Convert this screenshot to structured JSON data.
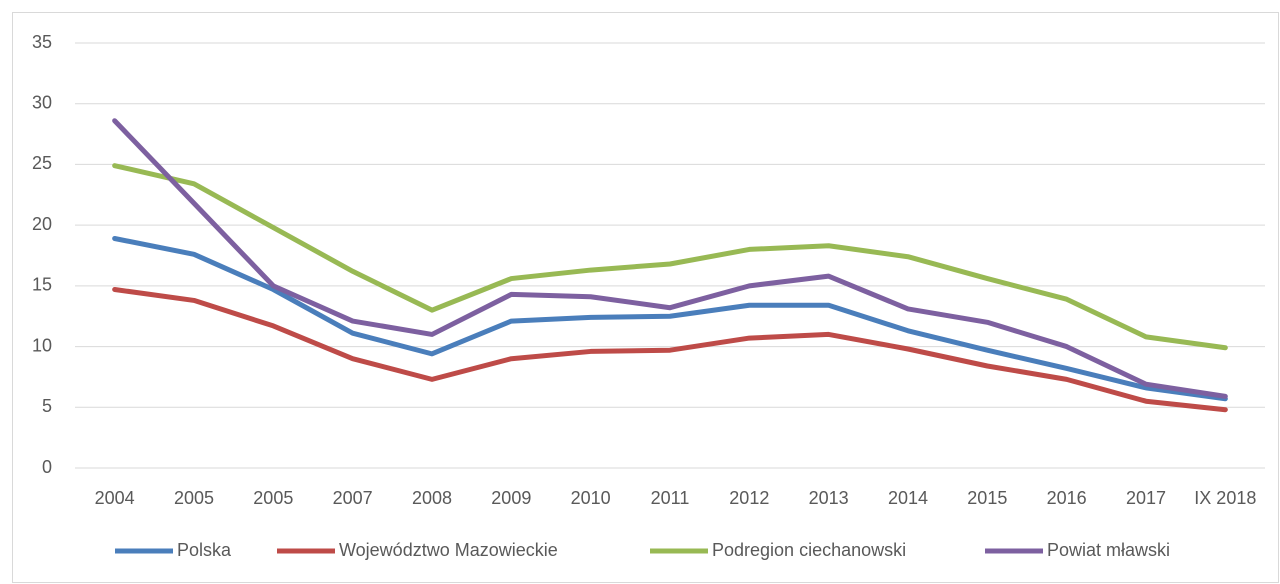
{
  "chart_data": {
    "type": "line",
    "categories": [
      "2004",
      "2005",
      "2005",
      "2007",
      "2008",
      "2009",
      "2010",
      "2011",
      "2012",
      "2013",
      "2014",
      "2015",
      "2016",
      "2017",
      "IX 2018"
    ],
    "series": [
      {
        "name": "Polska",
        "color": "#4a7ebb",
        "values": [
          18.9,
          17.6,
          14.7,
          11.1,
          9.4,
          12.1,
          12.4,
          12.5,
          13.4,
          13.4,
          11.3,
          9.7,
          8.2,
          6.6,
          5.7
        ]
      },
      {
        "name": "Województwo Mazowieckie",
        "color": "#be4b48",
        "values": [
          14.7,
          13.8,
          11.7,
          9.0,
          7.3,
          9.0,
          9.6,
          9.7,
          10.7,
          11.0,
          9.8,
          8.4,
          7.3,
          5.5,
          4.8
        ]
      },
      {
        "name": "Podregion ciechanowski",
        "color": "#98b954",
        "values": [
          24.9,
          23.4,
          19.8,
          16.2,
          13.0,
          15.6,
          16.3,
          16.8,
          18.0,
          18.3,
          17.4,
          15.6,
          13.9,
          10.8,
          9.9
        ]
      },
      {
        "name": "Powiat mławski",
        "color": "#7d60a0",
        "values": [
          28.6,
          21.8,
          15.0,
          12.1,
          11.0,
          14.3,
          14.1,
          13.2,
          15.0,
          15.8,
          13.1,
          12.0,
          10.0,
          6.9,
          5.9
        ]
      }
    ],
    "ylim": [
      0,
      35
    ],
    "yticks": [
      0,
      5,
      10,
      15,
      20,
      25,
      30,
      35
    ],
    "grid": true,
    "legend": "bottom"
  }
}
